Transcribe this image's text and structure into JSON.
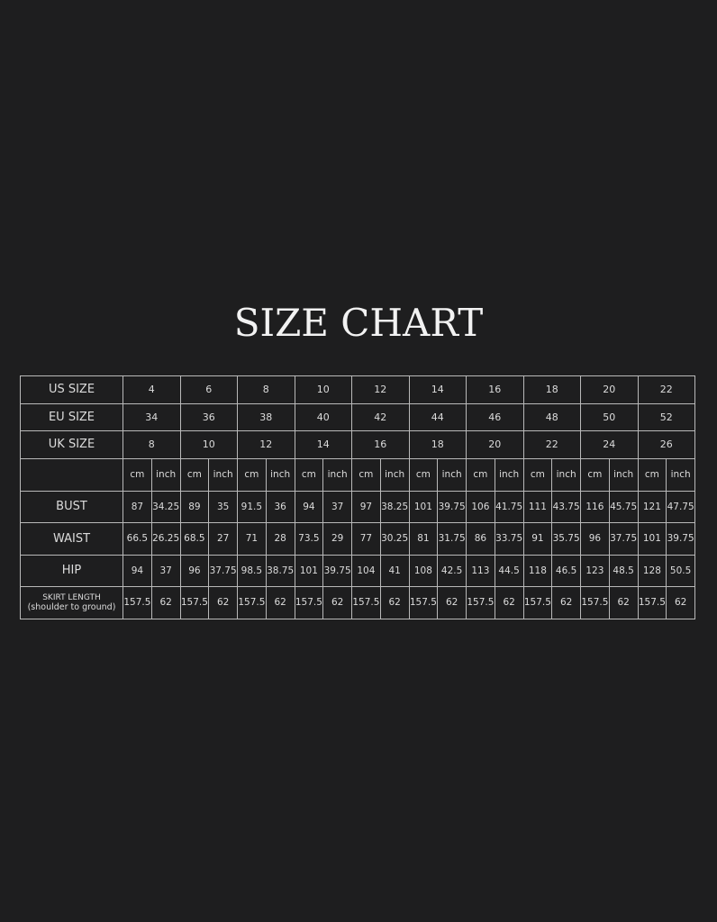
{
  "title": "SIZE CHART",
  "table": {
    "size_rows": [
      {
        "label": "US SIZE",
        "values": [
          "4",
          "6",
          "8",
          "10",
          "12",
          "14",
          "16",
          "18",
          "20",
          "22"
        ]
      },
      {
        "label": "EU SIZE",
        "values": [
          "34",
          "36",
          "38",
          "40",
          "42",
          "44",
          "46",
          "48",
          "50",
          "52"
        ]
      },
      {
        "label": "UK SIZE",
        "values": [
          "8",
          "10",
          "12",
          "14",
          "16",
          "18",
          "20",
          "22",
          "24",
          "26"
        ]
      }
    ],
    "units": [
      "cm",
      "inch",
      "cm",
      "inch",
      "cm",
      "inch",
      "cm",
      "inch",
      "cm",
      "inch",
      "cm",
      "inch",
      "cm",
      "inch",
      "cm",
      "inch",
      "cm",
      "inch",
      "cm",
      "inch"
    ],
    "measure_rows": [
      {
        "label": "BUST",
        "values": [
          "87",
          "34.25",
          "89",
          "35",
          "91.5",
          "36",
          "94",
          "37",
          "97",
          "38.25",
          "101",
          "39.75",
          "106",
          "41.75",
          "111",
          "43.75",
          "116",
          "45.75",
          "121",
          "47.75"
        ]
      },
      {
        "label": "WAIST",
        "values": [
          "66.5",
          "26.25",
          "68.5",
          "27",
          "71",
          "28",
          "73.5",
          "29",
          "77",
          "30.25",
          "81",
          "31.75",
          "86",
          "33.75",
          "91",
          "35.75",
          "96",
          "37.75",
          "101",
          "39.75"
        ]
      },
      {
        "label": "HIP",
        "values": [
          "94",
          "37",
          "96",
          "37.75",
          "98.5",
          "38.75",
          "101",
          "39.75",
          "104",
          "41",
          "108",
          "42.5",
          "113",
          "44.5",
          "118",
          "46.5",
          "123",
          "48.5",
          "128",
          "50.5"
        ]
      },
      {
        "label": "SKIRT LENGTH",
        "sublabel": "(shoulder to ground)",
        "values": [
          "157.5",
          "62",
          "157.5",
          "62",
          "157.5",
          "62",
          "157.5",
          "62",
          "157.5",
          "62",
          "157.5",
          "62",
          "157.5",
          "62",
          "157.5",
          "62",
          "157.5",
          "62",
          "157.5",
          "62"
        ]
      }
    ]
  }
}
